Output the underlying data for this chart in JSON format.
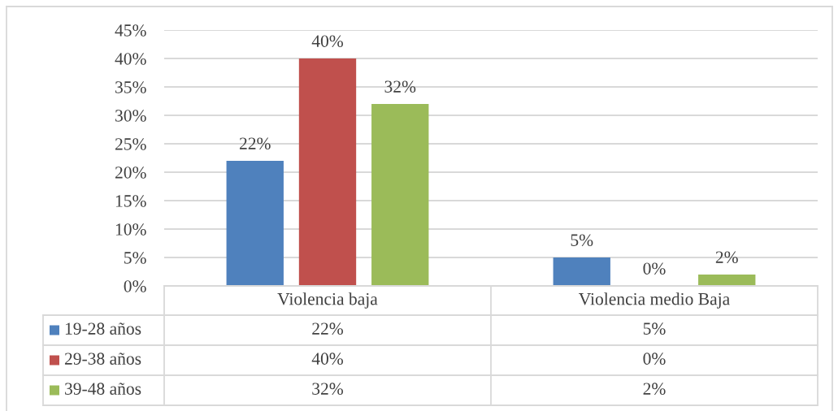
{
  "chart_data": {
    "type": "bar",
    "categories": [
      "Violencia baja",
      "Violencia medio Baja"
    ],
    "series": [
      {
        "name": "19-28 años",
        "color": "#4f81bd",
        "values": [
          22,
          5
        ],
        "value_labels": [
          "22%",
          "5%"
        ]
      },
      {
        "name": "29-38 años",
        "color": "#c0504d",
        "values": [
          40,
          0
        ],
        "value_labels": [
          "40%",
          "0%"
        ]
      },
      {
        "name": "39-48 años",
        "color": "#9bbb59",
        "values": [
          32,
          2
        ],
        "value_labels": [
          "32%",
          "2%"
        ]
      }
    ],
    "ylim": [
      0,
      45
    ],
    "yticks": [
      {
        "value": 0,
        "label": "0%"
      },
      {
        "value": 5,
        "label": "5%"
      },
      {
        "value": 10,
        "label": "10%"
      },
      {
        "value": 15,
        "label": "15%"
      },
      {
        "value": 20,
        "label": "20%"
      },
      {
        "value": 25,
        "label": "25%"
      },
      {
        "value": 30,
        "label": "30%"
      },
      {
        "value": 35,
        "label": "35%"
      },
      {
        "value": 40,
        "label": "40%"
      },
      {
        "value": 45,
        "label": "45%"
      }
    ],
    "grid": "y",
    "legend": "bottom"
  }
}
